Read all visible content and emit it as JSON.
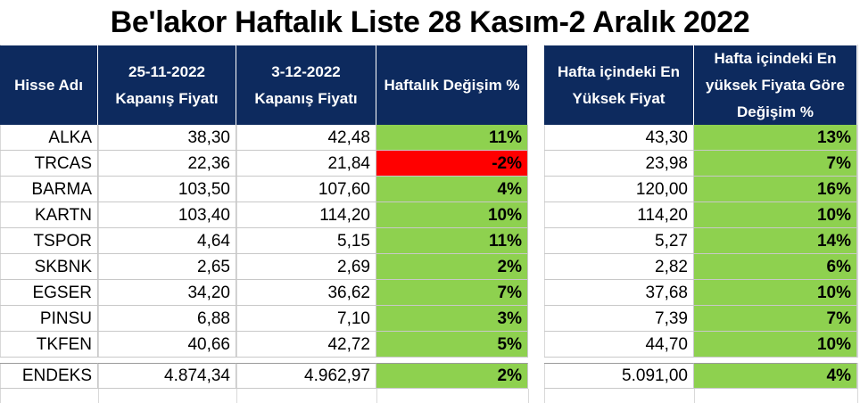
{
  "title": "Be'lakor Haftalık Liste 28 Kasım-2 Aralık 2022",
  "colors": {
    "header_bg": "#0d2a5e",
    "positive": "#8ed14f",
    "negative": "#ff0000"
  },
  "chart_data": {
    "type": "table",
    "columns": [
      "Hisse Adı",
      "25-11-2022 Kapanış Fiyatı",
      "3-12-2022 Kapanış Fiyatı",
      "Haftalık Değişim %",
      "Hafta içindeki En Yüksek Fiyat",
      "Hafta içindeki En yüksek Fiyata Göre Değişim %"
    ],
    "rows": [
      [
        "ALKA",
        "38,30",
        "42,48",
        "11%",
        "43,30",
        "13%"
      ],
      [
        "TRCAS",
        "22,36",
        "21,84",
        "-2%",
        "23,98",
        "7%"
      ],
      [
        "BARMA",
        "103,50",
        "107,60",
        "4%",
        "120,00",
        "16%"
      ],
      [
        "KARTN",
        "103,40",
        "114,20",
        "10%",
        "114,20",
        "10%"
      ],
      [
        "TSPOR",
        "4,64",
        "5,15",
        "11%",
        "5,27",
        "14%"
      ],
      [
        "SKBNK",
        "2,65",
        "2,69",
        "2%",
        "2,82",
        "6%"
      ],
      [
        "EGSER",
        "34,20",
        "36,62",
        "7%",
        "37,68",
        "10%"
      ],
      [
        "PINSU",
        "6,88",
        "7,10",
        "3%",
        "7,39",
        "7%"
      ],
      [
        "TKFEN",
        "40,66",
        "42,72",
        "5%",
        "44,70",
        "10%"
      ]
    ],
    "total_row": [
      "ENDEKS",
      "4.874,34",
      "4.962,97",
      "2%",
      "5.091,00",
      "4%"
    ]
  }
}
